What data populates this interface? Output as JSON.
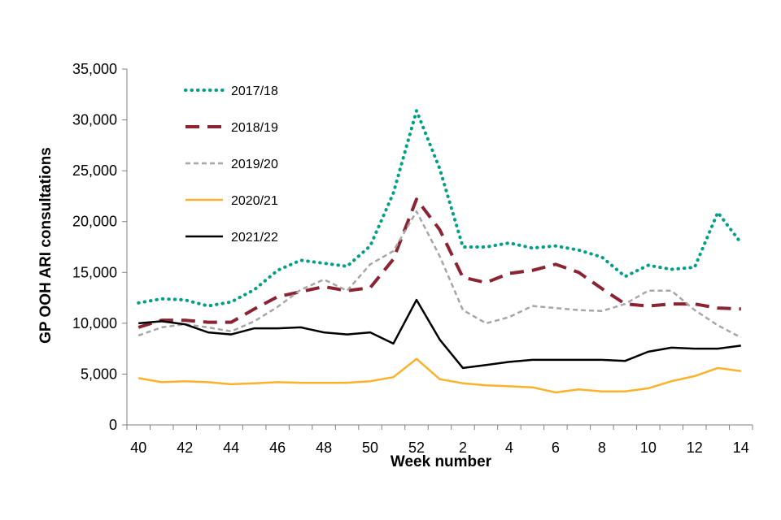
{
  "chart_data": {
    "type": "line",
    "title": "",
    "xlabel": "Week number",
    "ylabel": "GP OOH ARI consultations",
    "ylim": [
      0,
      35000
    ],
    "yticks": [
      0,
      5000,
      10000,
      15000,
      20000,
      25000,
      30000,
      35000
    ],
    "ytick_labels": [
      "0",
      "5,000",
      "10,000",
      "15,000",
      "20,000",
      "25,000",
      "30,000",
      "35,000"
    ],
    "categories": [
      "40",
      "41",
      "42",
      "43",
      "44",
      "45",
      "46",
      "47",
      "48",
      "49",
      "50",
      "51",
      "52",
      "1",
      "2",
      "3",
      "4",
      "5",
      "6",
      "7",
      "8",
      "9",
      "10",
      "11",
      "12",
      "13",
      "14"
    ],
    "xtick_labels": [
      "40",
      "42",
      "44",
      "46",
      "48",
      "50",
      "52",
      "2",
      "4",
      "6",
      "8",
      "10",
      "12",
      "14"
    ],
    "legend_position": "upper-left",
    "series": [
      {
        "name": "2017/18",
        "color": "#00a085",
        "style": "dotted",
        "values": [
          12000,
          12400,
          12300,
          11700,
          12100,
          13300,
          15200,
          16200,
          15900,
          15600,
          17600,
          22800,
          30900,
          25200,
          17500,
          17500,
          17900,
          17400,
          17600,
          17200,
          16500,
          14600,
          15700,
          15300,
          15500,
          20900,
          17900
        ]
      },
      {
        "name": "2018/19",
        "color": "#8b2332",
        "style": "dashed",
        "values": [
          9600,
          10300,
          10300,
          10100,
          10100,
          11400,
          12600,
          13100,
          13600,
          13200,
          13500,
          16300,
          22200,
          19200,
          14500,
          14000,
          14900,
          15200,
          15800,
          15000,
          13400,
          11900,
          11700,
          11900,
          11900,
          11500,
          11400
        ]
      },
      {
        "name": "2019/20",
        "color": "#a6a6a6",
        "style": "shortdash",
        "values": [
          8800,
          9600,
          9900,
          9600,
          9200,
          10200,
          11600,
          13300,
          14300,
          13200,
          15800,
          17100,
          21000,
          16600,
          11300,
          10000,
          10600,
          11700,
          11500,
          11300,
          11200,
          11900,
          13200,
          13200,
          11300,
          9800,
          8600
        ]
      },
      {
        "name": "2020/21",
        "color": "#fbb12a",
        "style": "solid",
        "values": [
          4600,
          4200,
          4300,
          4200,
          4000,
          4100,
          4200,
          4150,
          4150,
          4150,
          4300,
          4700,
          6500,
          4500,
          4100,
          3900,
          3800,
          3700,
          3200,
          3500,
          3300,
          3300,
          3600,
          4300,
          4800,
          5600,
          5300
        ]
      },
      {
        "name": "2021/22",
        "color": "#000000",
        "style": "solid",
        "values": [
          10000,
          10200,
          9900,
          9100,
          8900,
          9500,
          9500,
          9600,
          9100,
          8900,
          9100,
          8000,
          12300,
          8400,
          5600,
          5900,
          6200,
          6400,
          6400,
          6400,
          6400,
          6300,
          7200,
          7600,
          7500,
          7500,
          7800
        ]
      }
    ]
  }
}
